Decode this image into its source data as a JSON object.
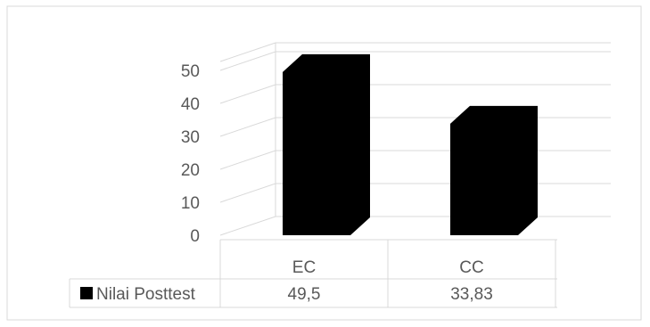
{
  "chart_data": {
    "type": "bar",
    "three_d": true,
    "categories": [
      "EC",
      "CC"
    ],
    "series": [
      {
        "name": "Nilai Posttest",
        "values": [
          49.5,
          33.83
        ],
        "value_labels": [
          "49,5",
          "33,83"
        ],
        "color": "#000000"
      }
    ],
    "y_ticks": [
      0,
      10,
      20,
      30,
      40,
      50
    ],
    "ylim": [
      0,
      50
    ],
    "grid": true,
    "data_table": true,
    "legend_in_table": true,
    "colors": {
      "bar": "#000000",
      "grid": "#d9d9d9",
      "text": "#595959",
      "border": "#d9d9d9"
    }
  }
}
